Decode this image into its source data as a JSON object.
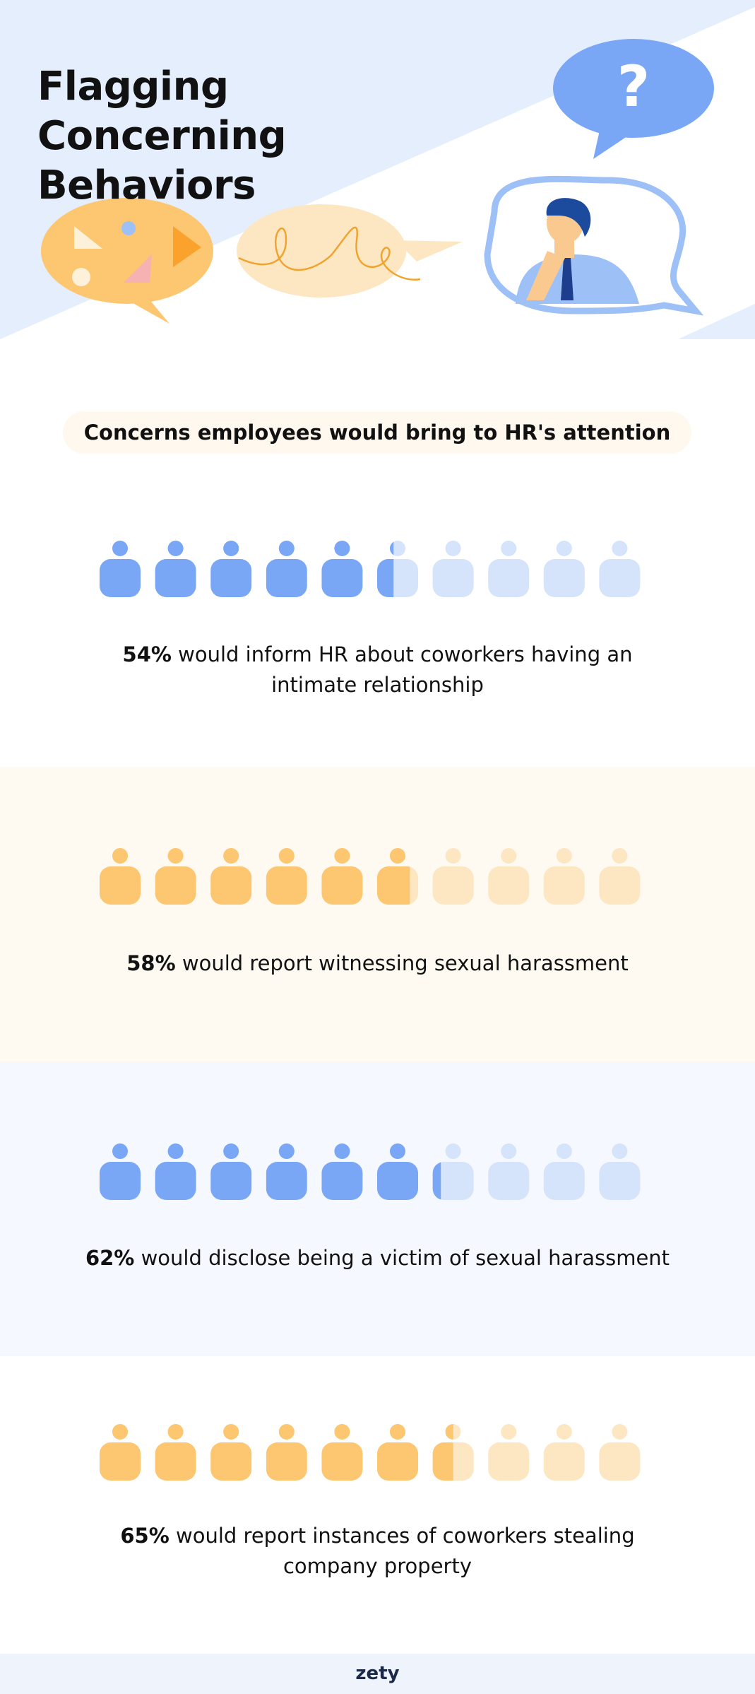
{
  "title": "Flagging Concerning Behaviors",
  "subtitle": "Concerns employees would bring to HR's attention",
  "chart_data": [
    {
      "type": "pictogram",
      "values": [
        54
      ],
      "value_labels": [
        "54%"
      ],
      "text": "would inform HR about coworkers having an intimate relationship",
      "xlim": [
        0,
        100
      ],
      "color": "#7aa7f5",
      "light_color": "#d5e3fb",
      "background": "#ffffff"
    },
    {
      "type": "pictogram",
      "values": [
        58
      ],
      "value_labels": [
        "58%"
      ],
      "text": "would report witnessing sexual harassment",
      "xlim": [
        0,
        100
      ],
      "color": "#fdc670",
      "light_color": "#fde7c3",
      "background": "#fef9f1"
    },
    {
      "type": "pictogram",
      "values": [
        62
      ],
      "value_labels": [
        "62%"
      ],
      "text": "would disclose being a victim of sexual harassment",
      "xlim": [
        0,
        100
      ],
      "color": "#7aa7f5",
      "light_color": "#d5e3fb",
      "background": "#f5f8fe"
    },
    {
      "type": "pictogram",
      "values": [
        65
      ],
      "value_labels": [
        "65%"
      ],
      "text": "would report instances of coworkers stealing company property",
      "xlim": [
        0,
        100
      ],
      "color": "#fdc670",
      "light_color": "#fde7c3",
      "background": "#ffffff"
    }
  ],
  "footer": "zety"
}
